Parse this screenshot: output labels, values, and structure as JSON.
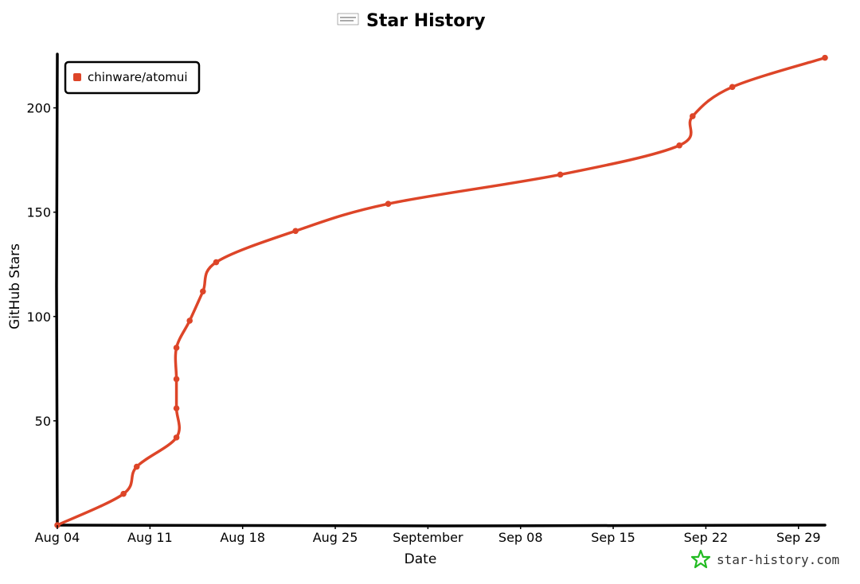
{
  "chart_data": {
    "type": "line",
    "title": "Star History",
    "xlabel": "Date",
    "ylabel": "GitHub Stars",
    "x_start": "2024-08-04",
    "xlim": [
      "2024-08-04",
      "2024-10-01"
    ],
    "ylim": [
      0,
      225
    ],
    "x_ticks": [
      {
        "date": "2024-08-04",
        "label": "Aug 04"
      },
      {
        "date": "2024-08-11",
        "label": "Aug 11"
      },
      {
        "date": "2024-08-18",
        "label": "Aug 18"
      },
      {
        "date": "2024-08-25",
        "label": "Aug 25"
      },
      {
        "date": "2024-09-01",
        "label": "September"
      },
      {
        "date": "2024-09-08",
        "label": "Sep 08"
      },
      {
        "date": "2024-09-15",
        "label": "Sep 15"
      },
      {
        "date": "2024-09-22",
        "label": "Sep 22"
      },
      {
        "date": "2024-09-29",
        "label": "Sep 29"
      }
    ],
    "y_ticks": [
      50,
      100,
      150,
      200
    ],
    "grid": false,
    "legend_position": "top-left",
    "series": [
      {
        "name": "chinware/atomui",
        "color": "#dd4528",
        "points": [
          {
            "x": "2024-08-04",
            "y": 0
          },
          {
            "x": "2024-08-09",
            "y": 15
          },
          {
            "x": "2024-08-10",
            "y": 28
          },
          {
            "x": "2024-08-13",
            "y": 42
          },
          {
            "x": "2024-08-13",
            "y": 56
          },
          {
            "x": "2024-08-13",
            "y": 70
          },
          {
            "x": "2024-08-13",
            "y": 85
          },
          {
            "x": "2024-08-14",
            "y": 98
          },
          {
            "x": "2024-08-15",
            "y": 112
          },
          {
            "x": "2024-08-16",
            "y": 126
          },
          {
            "x": "2024-08-22",
            "y": 141
          },
          {
            "x": "2024-08-29",
            "y": 154
          },
          {
            "x": "2024-09-11",
            "y": 168
          },
          {
            "x": "2024-09-20",
            "y": 182
          },
          {
            "x": "2024-09-21",
            "y": 196
          },
          {
            "x": "2024-09-24",
            "y": 210
          },
          {
            "x": "2024-10-01",
            "y": 224
          }
        ]
      }
    ]
  },
  "footer": {
    "credit": "star-history.com"
  },
  "colors": {
    "line": "#dd4528",
    "axis": "#000000",
    "logo": "#22bb22"
  }
}
